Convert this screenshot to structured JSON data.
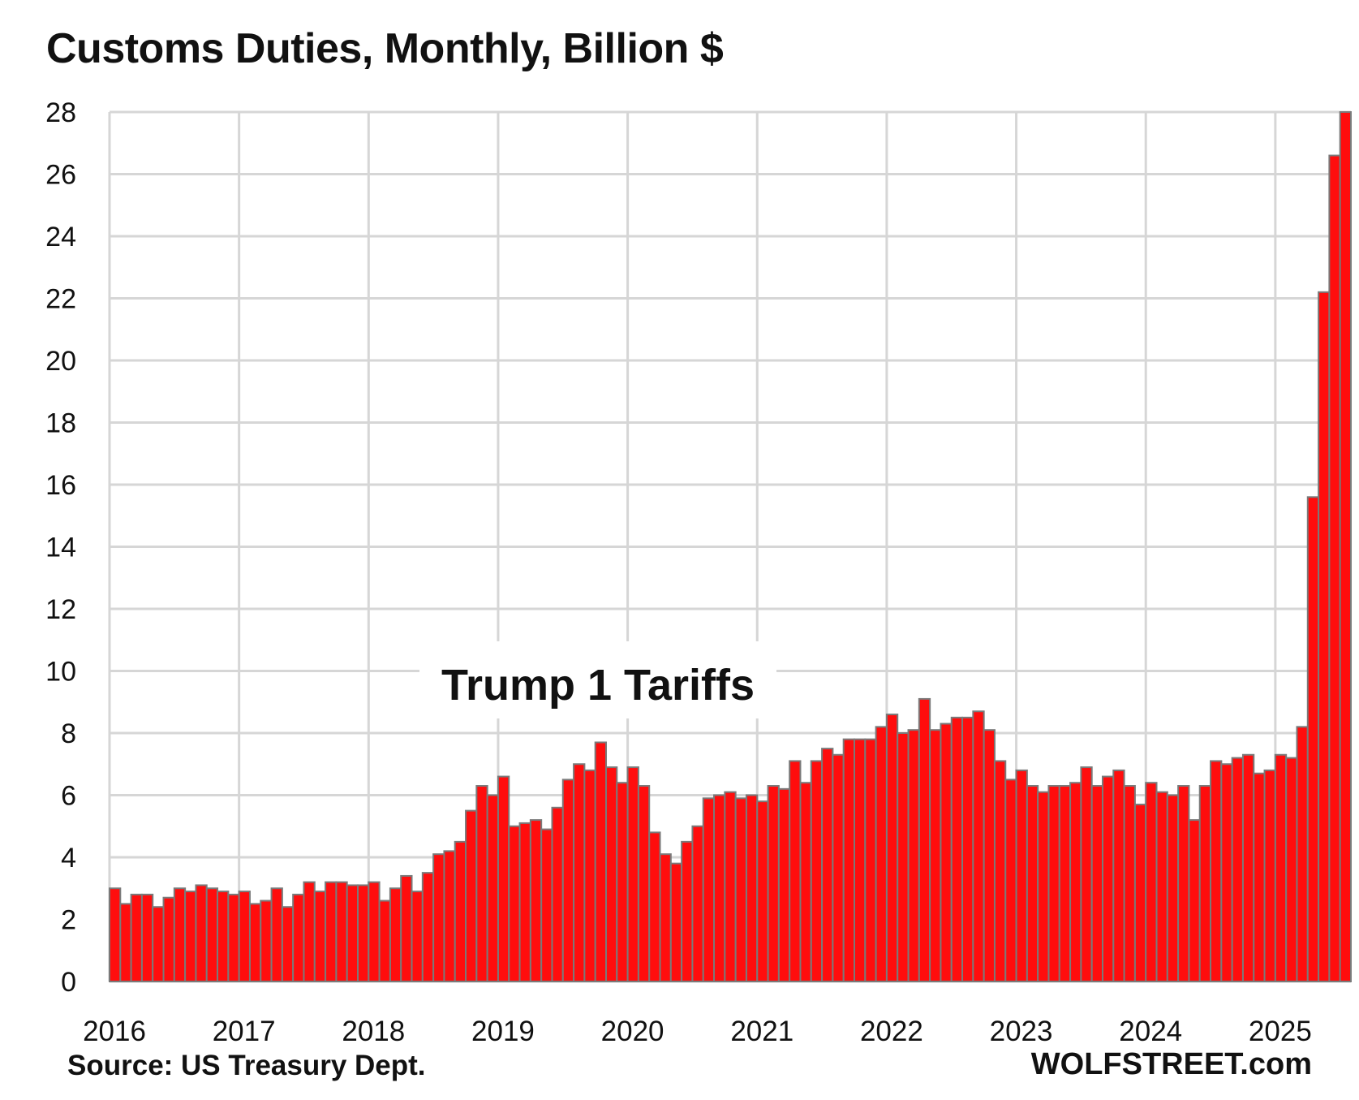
{
  "chart_data": {
    "type": "bar",
    "title": "Customs Duties, Monthly, Billion $",
    "xlabel": "",
    "ylabel": "",
    "ylim": [
      0,
      28
    ],
    "yticks": [
      "0",
      "2",
      "4",
      "6",
      "8",
      "10",
      "12",
      "14",
      "16",
      "18",
      "20",
      "22",
      "24",
      "26",
      "28"
    ],
    "xticks": [
      "2016",
      "2017",
      "2018",
      "2019",
      "2020",
      "2021",
      "2022",
      "2023",
      "2024",
      "2025"
    ],
    "start": "2016-01",
    "frequency": "monthly",
    "grid": true,
    "bar_color": "#ff0d0d",
    "bar_edge_color": "#7a7a7a",
    "annotation": "Trump 1 Tariffs",
    "values": [
      3.0,
      2.5,
      2.8,
      2.8,
      2.4,
      2.7,
      3.0,
      2.9,
      3.1,
      3.0,
      2.9,
      2.8,
      2.9,
      2.5,
      2.6,
      3.0,
      2.4,
      2.8,
      3.2,
      2.9,
      3.2,
      3.2,
      3.1,
      3.1,
      3.2,
      2.6,
      3.0,
      3.4,
      2.9,
      3.5,
      4.1,
      4.2,
      4.5,
      5.5,
      6.3,
      6.0,
      6.6,
      5.0,
      5.1,
      5.2,
      4.9,
      5.6,
      6.5,
      7.0,
      6.8,
      7.7,
      6.9,
      6.4,
      6.9,
      6.3,
      4.8,
      4.1,
      3.8,
      4.5,
      5.0,
      5.9,
      6.0,
      6.1,
      5.9,
      6.0,
      5.8,
      6.3,
      6.2,
      7.1,
      6.4,
      7.1,
      7.5,
      7.3,
      7.8,
      7.8,
      7.8,
      8.2,
      8.6,
      8.0,
      8.1,
      9.1,
      8.1,
      8.3,
      8.5,
      8.5,
      8.7,
      8.1,
      7.1,
      6.5,
      6.8,
      6.3,
      6.1,
      6.3,
      6.3,
      6.4,
      6.9,
      6.3,
      6.6,
      6.8,
      6.3,
      5.7,
      6.4,
      6.1,
      6.0,
      6.3,
      5.2,
      6.3,
      7.1,
      7.0,
      7.2,
      7.3,
      6.7,
      6.8,
      7.3,
      7.2,
      8.2,
      15.6,
      22.2,
      26.6,
      28.0
    ]
  },
  "footer": {
    "source": "Source: US Treasury Dept.",
    "brand": "WOLFSTREET.com"
  }
}
